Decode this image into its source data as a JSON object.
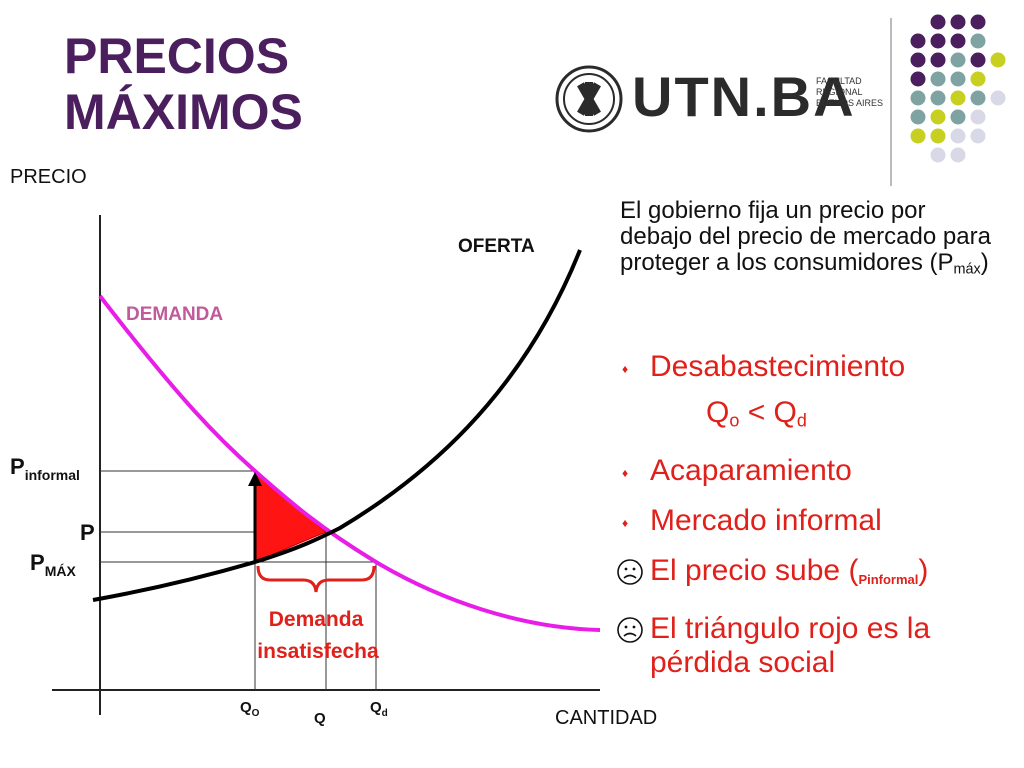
{
  "title": {
    "line1": "PRECIOS",
    "line2": "MÁXIMOS"
  },
  "logo": {
    "wordmark": "UTN.BA",
    "sub": [
      "FACULTAD",
      "REGIONAL",
      "BUENOS AIRES"
    ]
  },
  "colors": {
    "title": "#4b1e5e",
    "demand": "#e81ee8",
    "demand_label": "#c05a9a",
    "supply": "#000000",
    "accent_red": "#e0201a",
    "dot_purple": "#4b1e5e",
    "dot_teal": "#7fa3a3",
    "dot_yellow": "#c7cf20",
    "dot_lavender": "#d8d8e6"
  },
  "description": {
    "text": "El gobierno fija un precio por debajo del precio de mercado para proteger a los consumidores (P",
    "sub": "máx",
    "close": ")"
  },
  "bullets": {
    "b1": "Desabastecimiento",
    "eq_q": "Q",
    "eq_o": "o",
    "eq_lt": " < Q",
    "eq_d": "d",
    "b2": "Acaparamiento",
    "b3": "Mercado informal",
    "b4_text": "El precio sube (",
    "b4_sub": "Pinformal",
    "b4_close": ")",
    "b5": "El triángulo rojo es la pérdida social"
  },
  "chart": {
    "y_axis_label": "PRECIO",
    "x_axis_label": "CANTIDAD",
    "supply_label": "OFERTA",
    "demand_label": "DEMANDA",
    "p_informal_main": "P",
    "p_informal_sub": "informal",
    "p_label": "P",
    "pmax_main": "P",
    "pmax_sub": "MÁX",
    "qo_main": "Q",
    "qo_sub": "O",
    "q_label": "Q",
    "qd_main": "Q",
    "qd_sub": "d",
    "brace_line1": "Demanda",
    "brace_line2": "insatisfecha"
  }
}
